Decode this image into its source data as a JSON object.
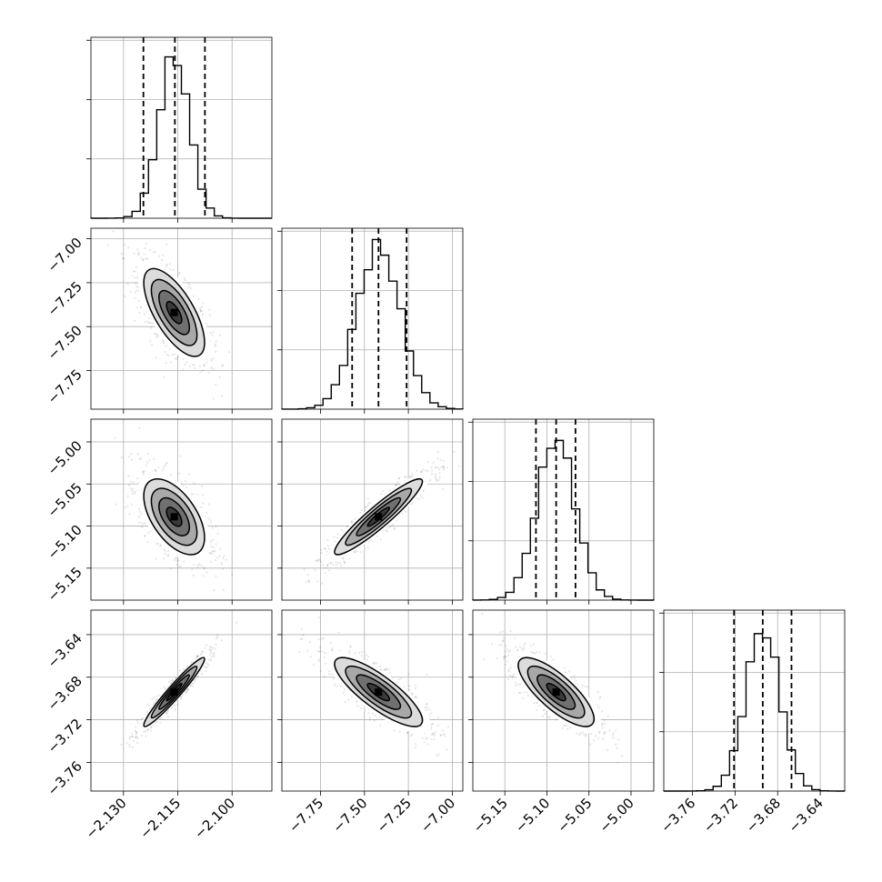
{
  "chart_data": {
    "type": "corner",
    "grid": true,
    "parameters": [
      {
        "range": [
          -2.139,
          -2.089
        ],
        "ticks": [
          -2.13,
          -2.115,
          -2.1
        ],
        "tick_labels": [
          "−2.130",
          "−2.115",
          "−2.100"
        ]
      },
      {
        "range": [
          -7.97,
          -6.94
        ],
        "ticks": [
          -7.75,
          -7.5,
          -7.25,
          -7.0
        ],
        "tick_labels": [
          "−7.75",
          "−7.50",
          "−7.25",
          "−7.00"
        ]
      },
      {
        "range": [
          -5.188,
          -4.973
        ],
        "ticks": [
          -5.15,
          -5.1,
          -5.05,
          -5.0
        ],
        "tick_labels": [
          "−5.15",
          "−5.10",
          "−5.05",
          "−5.00"
        ]
      },
      {
        "range": [
          -3.787,
          -3.617
        ],
        "ticks": [
          -3.76,
          -3.72,
          -3.68,
          -3.64
        ],
        "tick_labels": [
          "−3.76",
          "−3.72",
          "−3.68",
          "−3.64"
        ]
      }
    ],
    "means": [
      -2.116,
      -7.42,
      -5.089,
      -3.694
    ],
    "sigmas": [
      0.0042,
      0.125,
      0.0225,
      0.0162
    ],
    "quantiles": [
      [
        -2.1245,
        -2.1158,
        -2.1075
      ],
      [
        -7.57,
        -7.42,
        -7.26
      ],
      [
        -5.113,
        -5.089,
        -5.066
      ],
      [
        -3.721,
        -3.694,
        -3.667
      ]
    ],
    "correlations": [
      [
        1,
        -0.68,
        -0.55,
        0.96
      ],
      [
        -0.68,
        1,
        0.93,
        -0.82
      ],
      [
        -0.55,
        0.93,
        1,
        -0.78
      ],
      [
        0.96,
        -0.82,
        -0.78,
        1
      ]
    ],
    "histogram_yticks": 3
  }
}
